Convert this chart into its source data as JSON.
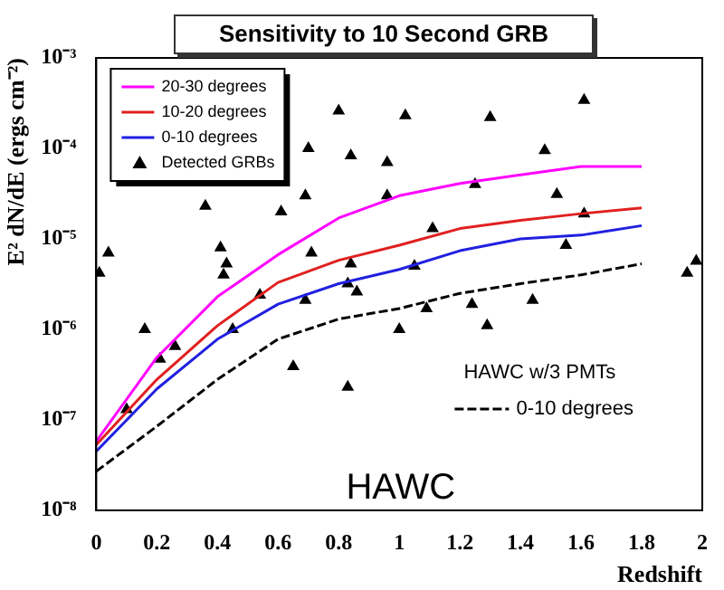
{
  "chart_data": {
    "type": "line",
    "title": "Sensitivity to 10 Second GRB",
    "xlabel": "Redshift",
    "ylabel": "E² dN/dE (ergs cm⁻²)",
    "log": "y",
    "grid": false,
    "legend": "top left",
    "xlim": [
      0,
      2
    ],
    "xticks": [
      0,
      0.2,
      0.4,
      0.6,
      0.8,
      1,
      1.2,
      1.4,
      1.6,
      1.8,
      2
    ],
    "ylim": [
      1e-08,
      0.001
    ],
    "yticks": [
      {
        "value": 1e-08,
        "label": "10⁻⁸"
      },
      {
        "value": 1e-07,
        "label": "10⁻⁷"
      },
      {
        "value": 1e-06,
        "label": "10⁻⁶"
      },
      {
        "value": 1e-05,
        "label": "10⁻⁵"
      },
      {
        "value": 0.0001,
        "label": "10⁻⁴"
      },
      {
        "value": 0.001,
        "label": "10⁻³"
      }
    ],
    "annotations": [
      "HAWC w/3 PMTs",
      "HAWC"
    ],
    "series": [
      {
        "name": "20-30 degrees",
        "color": "#ff00ff",
        "marker": "none",
        "x": [
          0,
          0.2,
          0.4,
          0.6,
          0.8,
          1,
          1.2,
          1.4,
          1.6,
          1.8
        ],
        "values": [
          5.8e-08,
          4.9e-07,
          2.3e-06,
          6.7e-06,
          1.7e-05,
          3e-05,
          4.1e-05,
          5.1e-05,
          6.3e-05,
          6.3e-05
        ]
      },
      {
        "name": "10-20 degrees",
        "color": "#e02020",
        "marker": "none",
        "x": [
          0,
          0.2,
          0.4,
          0.6,
          0.8,
          1,
          1.2,
          1.4,
          1.6,
          1.8
        ],
        "values": [
          5.3e-08,
          2.8e-07,
          1.1e-06,
          3.3e-06,
          5.8e-06,
          8.5e-06,
          1.3e-05,
          1.6e-05,
          1.9e-05,
          2.2e-05
        ]
      },
      {
        "name": "0-10 degrees",
        "color": "#2020e0",
        "marker": "none",
        "x": [
          0,
          0.2,
          0.4,
          0.6,
          0.8,
          1,
          1.2,
          1.4,
          1.6,
          1.8
        ],
        "values": [
          4.5e-08,
          2.2e-07,
          7.8e-07,
          1.9e-06,
          3.2e-06,
          4.6e-06,
          7.4e-06,
          1e-05,
          1.1e-05,
          1.4e-05
        ]
      },
      {
        "name": "Detected GRBs",
        "type": "scatter",
        "color": "#000000",
        "marker": "triangle",
        "x": [
          0.36,
          0.7,
          0.8,
          1.02,
          0.84,
          0.96,
          1.3,
          1.61,
          1.48,
          0.61,
          0.69,
          0.96,
          1.25,
          1.52,
          1.61,
          1.11,
          0.04,
          0.41,
          0.43,
          0.71,
          0.84,
          1.05,
          1.55,
          1.98,
          1.95,
          0.01,
          0.42,
          0.16,
          0.21,
          0.26,
          0.1,
          0.45,
          0.54,
          0.69,
          0.83,
          0.86,
          0.65,
          0.83,
          1.0,
          1.09,
          1.24,
          1.29,
          1.44
        ],
        "values": [
          2.3e-05,
          0.0001,
          0.00026,
          0.00023,
          8.3e-05,
          7e-05,
          0.00022,
          0.00034,
          9.5e-05,
          2e-05,
          3e-05,
          3e-05,
          4e-05,
          3.1e-05,
          1.9e-05,
          1.3e-05,
          7e-06,
          8e-06,
          5.3e-06,
          7e-06,
          5.3e-06,
          5e-06,
          8.5e-06,
          5.7e-06,
          4.2e-06,
          4.2e-06,
          4e-06,
          1e-06,
          4.7e-07,
          6.5e-07,
          1.3e-07,
          1e-06,
          2.4e-06,
          2.1e-06,
          3.2e-06,
          2.6e-06,
          3.9e-07,
          2.3e-07,
          1e-06,
          1.7e-06,
          1.9e-06,
          1.1e-06,
          2.1e-06
        ]
      },
      {
        "name": "0-10 degrees",
        "color": "#000000",
        "marker": "none",
        "line_style": "dashed",
        "x": [
          0,
          0.2,
          0.4,
          0.6,
          0.8,
          1,
          1.2,
          1.4,
          1.6,
          1.8
        ],
        "values": [
          2.7e-08,
          8.5e-08,
          2.8e-07,
          7.8e-07,
          1.3e-06,
          1.7e-06,
          2.5e-06,
          3.2e-06,
          4e-06,
          5.3e-06
        ]
      }
    ]
  }
}
